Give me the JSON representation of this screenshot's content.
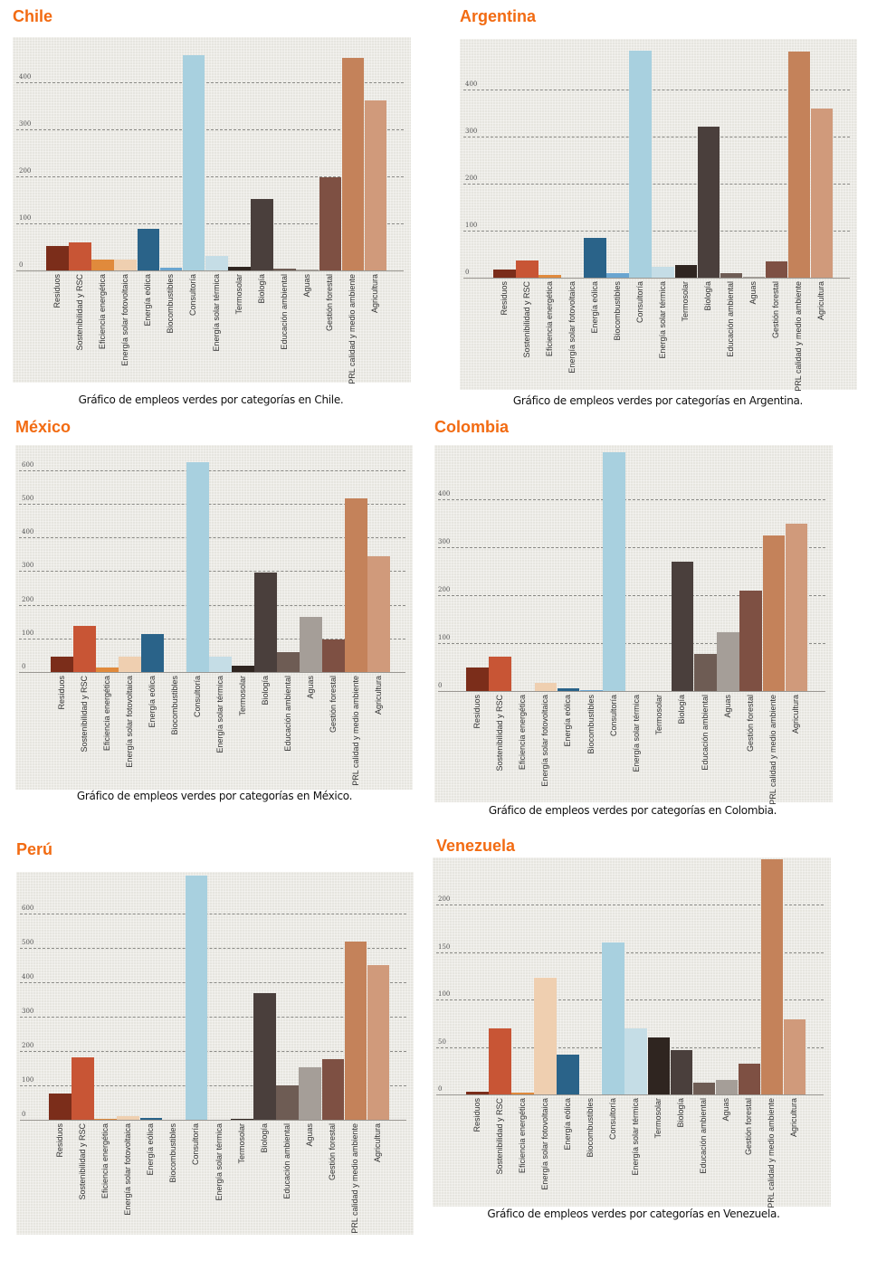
{
  "categories": [
    "Residuos",
    "Sostenibilidad y RSC",
    "Eficiencia energética",
    "Energía solar fotovoltaica",
    "Energía eólica",
    "Biocombustibles",
    "Consultoría",
    "Energía solar térmica",
    "Termosolar",
    "Biología",
    "Educación ambiental",
    "Aguas",
    "Gestión forestal",
    "PRL calidad y medio ambiente",
    "Agricultura"
  ],
  "colors": [
    "#7b2d1a",
    "#c85535",
    "#e08a3c",
    "#efcfb0",
    "#2a6389",
    "#6aa5d0",
    "#a8d0df",
    "#c5dde6",
    "#2f2520",
    "#4a3f3c",
    "#6e5c54",
    "#a59e98",
    "#7e5043",
    "#c4825a",
    "#d09a7b"
  ],
  "title_color": "#f26b12",
  "chart_data": [
    {
      "type": "bar",
      "title": "Chile",
      "caption": "Gráfico de empleos verdes por categorías en Chile.",
      "ylim": [
        0,
        480
      ],
      "yticks": [
        0,
        100,
        200,
        300,
        400
      ],
      "grid": true,
      "values": [
        51,
        59,
        23,
        23,
        89,
        6,
        457,
        30,
        8,
        152,
        4,
        1,
        199,
        452,
        362
      ]
    },
    {
      "type": "bar",
      "title": "Argentina",
      "caption": "Gráfico de empleos verdes por categorías en Argentina.",
      "ylim": [
        0,
        480
      ],
      "yticks": [
        0,
        100,
        200,
        300,
        400
      ],
      "grid": true,
      "values": [
        17,
        36,
        6,
        0,
        85,
        10,
        483,
        23,
        27,
        321,
        10,
        2,
        35,
        481,
        360
      ]
    },
    {
      "type": "bar",
      "title": "México",
      "caption": "Gráfico de empleos verdes por categorías en México.",
      "ylim": [
        0,
        640
      ],
      "yticks": [
        0,
        100,
        200,
        300,
        400,
        500,
        600
      ],
      "grid": true,
      "values": [
        47,
        137,
        13,
        47,
        113,
        0,
        624,
        47,
        18,
        297,
        60,
        163,
        97,
        516,
        345
      ]
    },
    {
      "type": "bar",
      "title": "Colombia",
      "caption": "Gráfico de empleos verdes por categorías en Colombia.",
      "ylim": [
        0,
        500
      ],
      "yticks": [
        0,
        100,
        200,
        300,
        400
      ],
      "grid": true,
      "values": [
        49,
        72,
        0,
        17,
        6,
        2,
        498,
        0,
        0,
        270,
        77,
        123,
        209,
        325,
        349
      ]
    },
    {
      "type": "bar",
      "title": "Perú",
      "caption": "",
      "ylim": [
        0,
        720
      ],
      "yticks": [
        0,
        100,
        200,
        300,
        400,
        500,
        600
      ],
      "grid": true,
      "values": [
        76,
        182,
        3,
        10,
        5,
        0,
        711,
        0,
        3,
        368,
        100,
        153,
        176,
        518,
        450
      ]
    },
    {
      "type": "bar",
      "title": "Venezuela",
      "caption": "Gráfico de empleos verdes por categorías en Venezuela.",
      "ylim": [
        0,
        250
      ],
      "yticks": [
        0,
        50,
        100,
        150,
        200
      ],
      "grid": true,
      "values": [
        3,
        70,
        2,
        123,
        42,
        0,
        160,
        70,
        60,
        47,
        12,
        15,
        32,
        248,
        79
      ]
    }
  ]
}
